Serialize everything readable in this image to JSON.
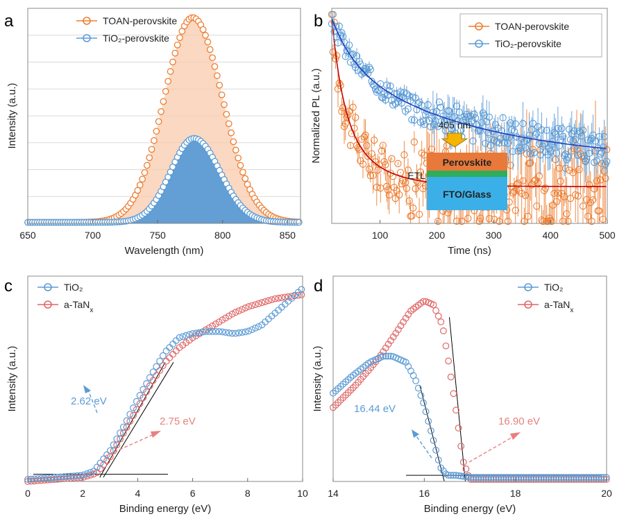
{
  "chart_data": [
    {
      "id": "a",
      "type": "line",
      "panel_letter": "a",
      "xlabel": "Wavelength (nm)",
      "ylabel": "Intensity (a.u.)",
      "xlim": [
        650,
        860
      ],
      "ylim": [
        0,
        1.05
      ],
      "xticks": [
        650,
        700,
        750,
        800,
        850
      ],
      "y_ticklabels": false,
      "grid": "horizontal",
      "legend_position": "top-left",
      "series": [
        {
          "name": "TOAN-perovskite",
          "color": "#ED7D31",
          "fill": "#F8CBAD",
          "peak_x": 777,
          "peak_y": 1.0,
          "sigma_left": 22,
          "sigma_right": 23,
          "x": [
            650,
            700,
            720,
            740,
            750,
            760,
            770,
            777,
            785,
            795,
            805,
            815,
            830,
            845,
            860
          ],
          "y": [
            0.0,
            0.01,
            0.05,
            0.28,
            0.5,
            0.76,
            0.95,
            1.0,
            0.95,
            0.79,
            0.55,
            0.32,
            0.1,
            0.03,
            0.02
          ]
        },
        {
          "name": "TiO₂-perovskite",
          "color": "#5B9BD5",
          "fill": "#5B9BD5",
          "peak_x": 778,
          "peak_y": 0.41,
          "sigma_left": 18,
          "sigma_right": 20,
          "x": [
            650,
            700,
            730,
            750,
            760,
            770,
            778,
            786,
            796,
            806,
            820,
            840,
            860
          ],
          "y": [
            0.0,
            0.0,
            0.02,
            0.14,
            0.26,
            0.37,
            0.41,
            0.38,
            0.29,
            0.18,
            0.06,
            0.01,
            0.0
          ]
        }
      ]
    },
    {
      "id": "b",
      "type": "scatter",
      "panel_letter": "b",
      "xlabel": "Time (ns)",
      "ylabel": "Normalized PL (a.u.)",
      "xlim": [
        15,
        500
      ],
      "ylim": [
        0,
        1.05
      ],
      "xticks": [
        100,
        200,
        300,
        400,
        500
      ],
      "y_ticklabels": false,
      "legend_position": "top-right",
      "inset": {
        "excitation": "405 nm",
        "layers": [
          "Perovskite",
          "ETL",
          "FTO/Glass"
        ]
      },
      "series": [
        {
          "name": "TOAN-perovskite",
          "color": "#ED7D31",
          "fit_color": "#C00000",
          "decay": "biexponential",
          "a1": 0.55,
          "tau1_ns": 20,
          "a2": 0.45,
          "tau2_ns": 60,
          "baseline": 0.18,
          "noise": 0.12,
          "x": [
            15,
            30,
            50,
            75,
            100,
            150,
            200,
            300,
            400,
            500
          ],
          "y": [
            1.0,
            0.78,
            0.6,
            0.45,
            0.36,
            0.27,
            0.24,
            0.21,
            0.2,
            0.19
          ]
        },
        {
          "name": "TiO₂-perovskite",
          "color": "#5B9BD5",
          "fit_color": "#1F3FBF",
          "decay": "biexponential",
          "a1": 0.3,
          "tau1_ns": 40,
          "a2": 0.7,
          "tau2_ns": 240,
          "baseline": 0.3,
          "noise": 0.05,
          "x": [
            15,
            50,
            100,
            150,
            200,
            250,
            300,
            350,
            400,
            450,
            500
          ],
          "y": [
            1.0,
            0.86,
            0.74,
            0.66,
            0.59,
            0.53,
            0.48,
            0.44,
            0.41,
            0.38,
            0.36
          ]
        }
      ]
    },
    {
      "id": "c",
      "type": "line",
      "panel_letter": "c",
      "xlabel": "Binding energy (eV)",
      "ylabel": "Intensity (a.u.)",
      "xlim": [
        0,
        10
      ],
      "ylim": [
        0,
        1.0
      ],
      "xticks": [
        0,
        2,
        4,
        6,
        8,
        10
      ],
      "y_ticklabels": false,
      "legend_position": "top-left",
      "annotations": [
        {
          "text": "2.62 eV",
          "color": "#5B9BD5"
        },
        {
          "text": "2.75  eV",
          "color": "#E88080"
        }
      ],
      "series": [
        {
          "name": "TiO₂",
          "color": "#5B9BD5",
          "x": [
            0,
            1,
            2,
            2.4,
            3,
            3.5,
            4,
            4.5,
            5,
            5.5,
            6,
            6.5,
            7,
            7.5,
            8,
            8.5,
            9,
            9.5,
            10
          ],
          "y": [
            0.01,
            0.02,
            0.03,
            0.05,
            0.15,
            0.27,
            0.4,
            0.52,
            0.63,
            0.7,
            0.72,
            0.73,
            0.73,
            0.72,
            0.73,
            0.76,
            0.82,
            0.88,
            0.94
          ],
          "onset_eV": 2.62
        },
        {
          "name": "a-TaN",
          "name_sub": "x",
          "color": "#E06666",
          "x": [
            0,
            1,
            2,
            2.5,
            3,
            3.5,
            4,
            4.5,
            5,
            5.5,
            6,
            6.5,
            7,
            7.5,
            8,
            8.5,
            9,
            9.5,
            10
          ],
          "y": [
            0.0,
            0.01,
            0.02,
            0.04,
            0.12,
            0.24,
            0.36,
            0.48,
            0.58,
            0.65,
            0.7,
            0.74,
            0.78,
            0.82,
            0.85,
            0.87,
            0.89,
            0.9,
            0.91
          ],
          "onset_eV": 2.75
        }
      ]
    },
    {
      "id": "d",
      "type": "line",
      "panel_letter": "d",
      "xlabel": "Binding energy (eV)",
      "ylabel": "Intensity (a.u.)",
      "xlim": [
        14,
        20
      ],
      "ylim": [
        0,
        1.0
      ],
      "xticks": [
        14,
        16,
        18,
        20
      ],
      "y_ticklabels": false,
      "legend_position": "top-right",
      "annotations": [
        {
          "text": "16.44 eV",
          "color": "#5B9BD5"
        },
        {
          "text": "16.90 eV",
          "color": "#E88080"
        }
      ],
      "series": [
        {
          "name": "TiO₂",
          "color": "#5B9BD5",
          "x": [
            14,
            14.4,
            14.8,
            15.1,
            15.3,
            15.6,
            15.8,
            16.0,
            16.2,
            16.35,
            16.5,
            16.7,
            17,
            18,
            20
          ],
          "y": [
            0.43,
            0.51,
            0.58,
            0.61,
            0.61,
            0.58,
            0.5,
            0.37,
            0.2,
            0.07,
            0.03,
            0.03,
            0.02,
            0.02,
            0.02
          ],
          "cutoff_eV": 16.44
        },
        {
          "name": "a-TaN",
          "name_sub": "x",
          "color": "#E06666",
          "x": [
            14,
            14.5,
            15,
            15.4,
            15.7,
            16.0,
            16.2,
            16.4,
            16.55,
            16.7,
            16.85,
            17.0,
            18,
            20
          ],
          "y": [
            0.36,
            0.47,
            0.6,
            0.73,
            0.83,
            0.88,
            0.86,
            0.76,
            0.56,
            0.34,
            0.1,
            0.01,
            0.01,
            0.01
          ],
          "cutoff_eV": 16.9
        }
      ]
    }
  ]
}
